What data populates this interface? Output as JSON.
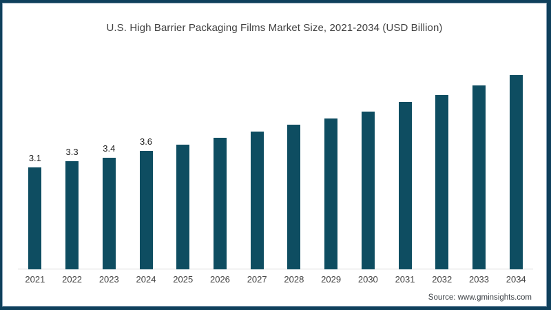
{
  "chart": {
    "title": "U.S. High Barrier Packaging Films Market Size, 2021-2034 (USD Billion)",
    "source": "Source: www.gminsights.com"
  },
  "chart_data": {
    "type": "bar",
    "title": "U.S. High Barrier Packaging Films Market Size, 2021-2034 (USD Billion)",
    "categories": [
      "2021",
      "2022",
      "2023",
      "2024",
      "2025",
      "2026",
      "2027",
      "2028",
      "2029",
      "2030",
      "2031",
      "2032",
      "2033",
      "2034"
    ],
    "values": [
      3.1,
      3.3,
      3.4,
      3.6,
      3.8,
      4.0,
      4.2,
      4.4,
      4.6,
      4.8,
      5.1,
      5.3,
      5.6,
      5.9
    ],
    "data_labels": [
      "3.1",
      "3.3",
      "3.4",
      "3.6",
      "",
      "",
      "",
      "",
      "",
      "",
      "",
      "",
      "",
      ""
    ],
    "xlabel": "",
    "ylabel": "",
    "ylim": [
      0,
      6.35
    ],
    "grid": false,
    "legend": false,
    "bar_color": "#0e4d61",
    "frame_border_color": "#0f405c",
    "axis_line_color": "#d9d9d9",
    "title_color": "#404040",
    "source_label": "Source: www.gminsights.com"
  }
}
